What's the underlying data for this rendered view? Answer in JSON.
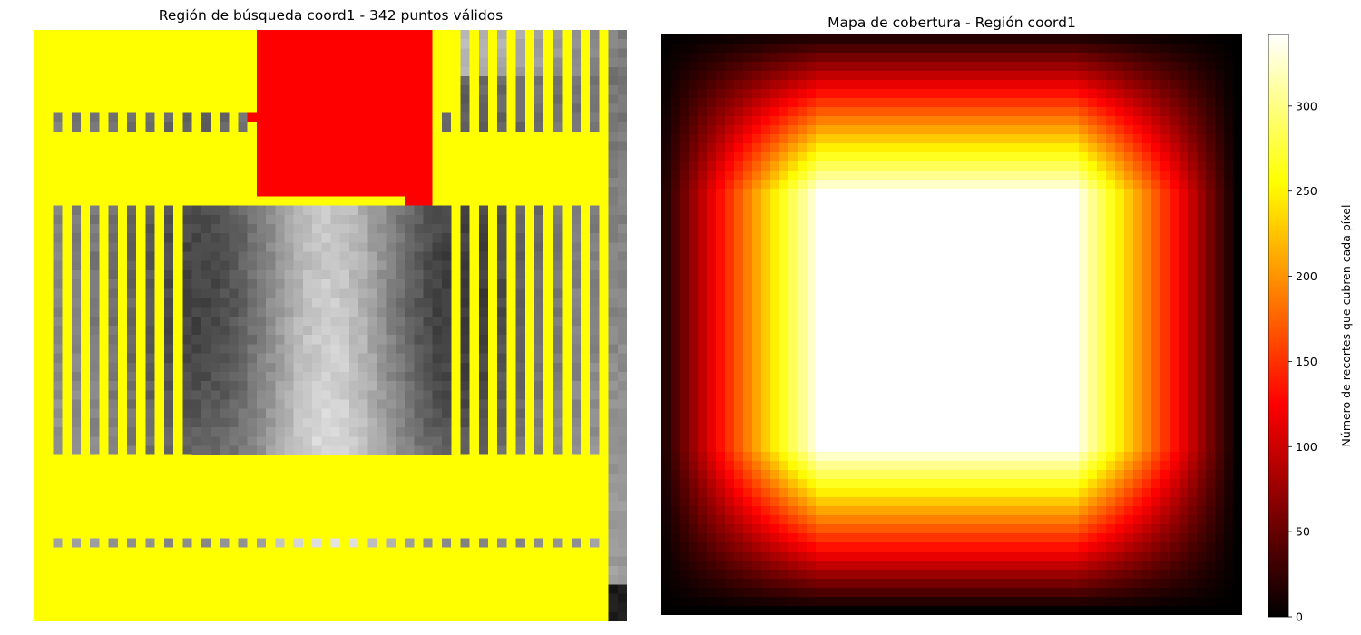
{
  "left_panel": {
    "title": "Región de búsqueda coord1 - 342 puntos válidos",
    "legend_colors": {
      "search_region": "#ffff00",
      "selected_crop": "#ff0000"
    }
  },
  "right_panel": {
    "title": "Mapa de cobertura - Región coord1",
    "colormap": "hot"
  },
  "chart_data": [
    {
      "type": "heatmap",
      "title": "Región de búsqueda coord1 - 342 puntos válidos",
      "valid_points": 342,
      "grid_cells": 64,
      "overlay": {
        "search_region_color": "#ffff00",
        "selected_crop_color": "#ff0000"
      },
      "axes": "off"
    },
    {
      "type": "heatmap",
      "title": "Mapa de cobertura - Región coord1",
      "grid_cells": 64,
      "colormap": "hot",
      "value_range": [
        0,
        342
      ],
      "plateau_value": 342,
      "axes": "off",
      "colorbar": {
        "label": "Número de recortes que cubren cada píxel",
        "ticks": [
          0,
          50,
          100,
          150,
          200,
          250,
          300
        ],
        "range": [
          0,
          342
        ],
        "placement": "right"
      }
    }
  ]
}
